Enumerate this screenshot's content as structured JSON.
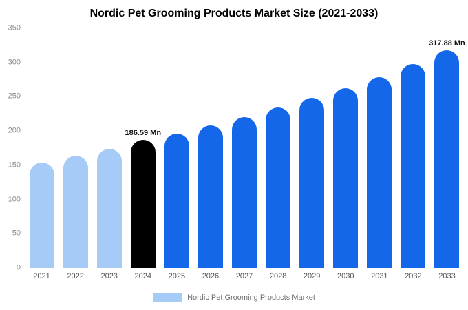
{
  "title": "Nordic Pet Grooming Products Market Size (2021-2033)",
  "legend": {
    "label": "Nordic Pet Grooming Products Market",
    "swatch_color": "#a6cbf7"
  },
  "colors": {
    "historical": "#a6cbf7",
    "highlight": "#000000",
    "forecast": "#1467e8"
  },
  "chart_data": {
    "type": "bar",
    "title": "Nordic Pet Grooming Products Market Size (2021-2033)",
    "xlabel": "",
    "ylabel": "",
    "ylim": [
      0,
      350
    ],
    "y_ticks": [
      0,
      50,
      100,
      150,
      200,
      250,
      300,
      350
    ],
    "grid": false,
    "legend_position": "bottom",
    "categories": [
      "2021",
      "2022",
      "2023",
      "2024",
      "2025",
      "2026",
      "2027",
      "2028",
      "2029",
      "2030",
      "2031",
      "2032",
      "2033"
    ],
    "values": [
      154,
      164,
      174,
      186.59,
      196,
      208,
      220,
      234,
      248,
      263,
      279,
      298,
      317.88
    ],
    "bar_colors": [
      "#a6cbf7",
      "#a6cbf7",
      "#a6cbf7",
      "#000000",
      "#1467e8",
      "#1467e8",
      "#1467e8",
      "#1467e8",
      "#1467e8",
      "#1467e8",
      "#1467e8",
      "#1467e8",
      "#1467e8"
    ],
    "annotations": [
      {
        "category": "2024",
        "text": "186.59 Mn"
      },
      {
        "category": "2033",
        "text": "317.88 Mn"
      }
    ]
  }
}
